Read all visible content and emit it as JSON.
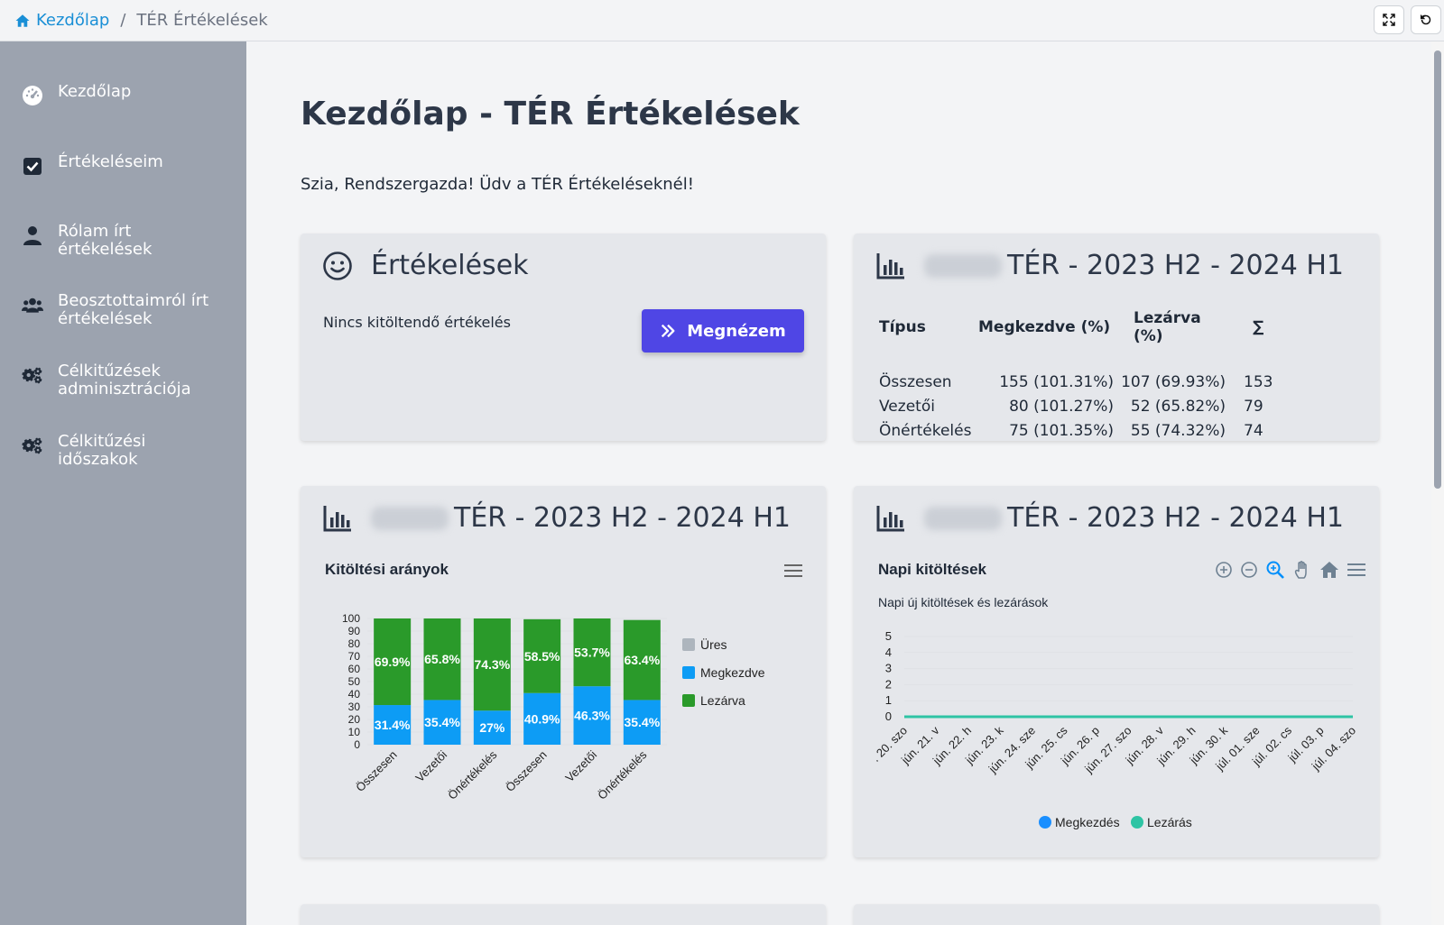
{
  "breadcrumb": {
    "home": "Kezdőlap",
    "current": "TÉR Értékelések"
  },
  "sidebar": {
    "items": [
      {
        "label": "Kezdőlap",
        "icon": "dashboard-icon"
      },
      {
        "label": "Értékeléseim",
        "icon": "check-square-icon"
      },
      {
        "label": "Rólam írt értékelések",
        "icon": "user-icon"
      },
      {
        "label": "Beosztottaimról írt értékelések",
        "icon": "users-icon"
      },
      {
        "label": "Célkitűzések adminisztrációja",
        "icon": "gears-icon"
      },
      {
        "label": "Célkitűzési időszakok",
        "icon": "gears-icon"
      }
    ]
  },
  "page": {
    "title": "Kezdőlap - TÉR Értékelések",
    "welcome": "Szia, Rendszergazda! Üdv a TÉR Értékeléseknél!"
  },
  "evaluations_card": {
    "title": "Értékelések",
    "empty_text": "Nincs kitöltendő értékelés",
    "button": "Megnézem"
  },
  "stats_card": {
    "title": "TÉR - 2023 H2 - 2024 H1",
    "headers": [
      "Típus",
      "Megkezdve (%)",
      "Lezárva (%)",
      "∑"
    ],
    "rows": [
      [
        "Összesen",
        "155 (101.31%)",
        "107 (69.93%)",
        "153"
      ],
      [
        "Vezetői",
        "80 (101.27%)",
        "52 (65.82%)",
        "79"
      ],
      [
        "Önértékelés",
        "75 (101.35%)",
        "55 (74.32%)",
        "74"
      ]
    ]
  },
  "bar_card": {
    "title": "TÉR - 2023 H2 - 2024 H1",
    "chart_title": "Kitöltési arányok"
  },
  "line_card": {
    "title": "TÉR - 2023 H2 - 2024 H1",
    "chart_title": "Napi kitöltések",
    "chart_subtitle": "Napi új kitöltések és lezárások"
  },
  "colors": {
    "ures": "#adb5bd",
    "megkezdve": "#0d9cf5",
    "lezarva": "#2a9a2a",
    "megkezdes": "#1a8fff",
    "lezaras": "#2ec4a4",
    "primary": "#4f46e5"
  },
  "chart_data": [
    {
      "type": "bar",
      "stacked": true,
      "categories": [
        "Összesen",
        "Vezetői",
        "Önértékelés",
        "Összesen",
        "Vezetői",
        "Önértékelés"
      ],
      "series": [
        {
          "name": "Üres",
          "values": [
            0,
            0,
            0,
            0,
            0,
            0
          ]
        },
        {
          "name": "Megkezdve",
          "values": [
            31.4,
            35.4,
            27,
            40.9,
            46.3,
            35.4
          ],
          "labels": [
            "31.4%",
            "35.4%",
            "27%",
            "40.9%",
            "46.3%",
            "35.4%"
          ]
        },
        {
          "name": "Lezárva",
          "values": [
            69.9,
            65.8,
            74.3,
            58.5,
            53.7,
            63.4
          ],
          "labels": [
            "69.9%",
            "65.8%",
            "74.3%",
            "58.5%",
            "53.7%",
            "63.4%"
          ]
        }
      ],
      "yticks": [
        "0",
        "10",
        "20",
        "30",
        "40",
        "50",
        "60",
        "70",
        "80",
        "90",
        "100"
      ],
      "ylim": [
        0,
        100
      ],
      "legend": "right"
    },
    {
      "type": "line",
      "title": "Napi kitöltések",
      "subtitle": "Napi új kitöltések és lezárások",
      "x": [
        ". 20. szo",
        "jún. 21. v",
        "jún. 22. h",
        "jún. 23. k",
        "jún. 24. sze",
        "jún. 25. cs",
        "jún. 26. p",
        "jún. 27. szo",
        "jún. 28. v",
        "jún. 29. h",
        "jún. 30. k",
        "júl. 01. sze",
        "júl. 02. cs",
        "júl. 03. p",
        "júl. 04. szo"
      ],
      "series": [
        {
          "name": "Megkezdés",
          "values": [
            0,
            0,
            0,
            0,
            0,
            0,
            0,
            0,
            0,
            0,
            0,
            0,
            0,
            0,
            0
          ]
        },
        {
          "name": "Lezárás",
          "values": [
            0,
            0,
            0,
            0,
            0,
            0,
            0,
            0,
            0,
            0,
            0,
            0,
            0,
            0,
            0
          ]
        }
      ],
      "yticks": [
        "0",
        "1",
        "2",
        "3",
        "4",
        "5"
      ],
      "ylim": [
        0,
        5
      ],
      "legend": "bottom"
    }
  ]
}
